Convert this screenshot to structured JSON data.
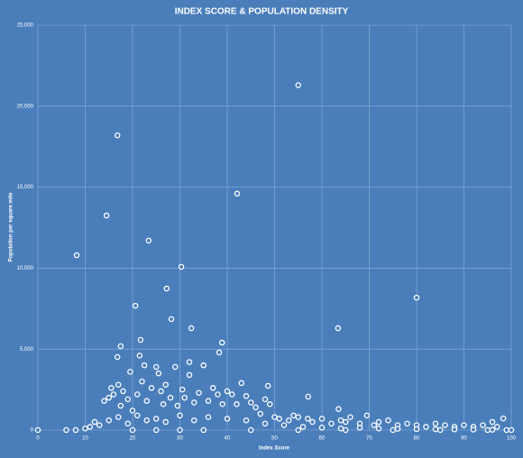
{
  "chart_data": {
    "type": "scatter",
    "title": "INDEX SCORE & POPULATION DENSITY",
    "x_label": "Index Score",
    "y_label": "Population per square mile",
    "color": "#ffffff",
    "background": "#4a7ebb",
    "grid": true,
    "xlim": [
      0,
      100
    ],
    "xticks": [
      0,
      10,
      20,
      30,
      40,
      50,
      60,
      70,
      80,
      90,
      100
    ],
    "ylim": [
      0,
      25000
    ],
    "yticks": [
      0,
      {
        "value": 5000,
        "label": "5,000"
      },
      {
        "value": 10000,
        "label": "10,000"
      },
      {
        "value": 15000,
        "label": "15,000"
      },
      {
        "value": 20000,
        "label": "20,000"
      },
      {
        "value": 25000,
        "label": "25,000"
      }
    ],
    "x": [
      55,
      16.8,
      42.1,
      14.5,
      23.4,
      8.2,
      30.3,
      80,
      27.2,
      20.6,
      28.2,
      32.4,
      63.4,
      21.7,
      38.9,
      17.5,
      38.3,
      16.8,
      57.1,
      48.6,
      98.3,
      14,
      15,
      15.5,
      16,
      17,
      17.5,
      18,
      19,
      19.5,
      20,
      21,
      21.5,
      22,
      22.5,
      23,
      24,
      25,
      25.5,
      26,
      26.5,
      27,
      28,
      29,
      29.5,
      30.5,
      31,
      32,
      32,
      33,
      34,
      35,
      36,
      37,
      38,
      39,
      40,
      41,
      42,
      43,
      44,
      45,
      46,
      47,
      48,
      49,
      50,
      51,
      53,
      54,
      55,
      57,
      58,
      60,
      62,
      63.5,
      64,
      65,
      66,
      68,
      69.5,
      71,
      72,
      74,
      76,
      78,
      80,
      82,
      84,
      86,
      88,
      90,
      92,
      94,
      96,
      97,
      0,
      6,
      8,
      10,
      11,
      12,
      13,
      15,
      17,
      19,
      21,
      23,
      25,
      27,
      30,
      33,
      36,
      40,
      44,
      48,
      52,
      56,
      60,
      64,
      68,
      72,
      76,
      80,
      84,
      88,
      92,
      96,
      99,
      100,
      45,
      55,
      65,
      75,
      85,
      95,
      20,
      30,
      35,
      25
    ],
    "values": [
      21300,
      18200,
      14600,
      13250,
      11700,
      10800,
      10080,
      8180,
      8740,
      7680,
      6850,
      6290,
      6290,
      5570,
      5400,
      5180,
      4790,
      4510,
      2060,
      2730,
      720,
      1800,
      2000,
      2600,
      2200,
      2800,
      1500,
      2400,
      1900,
      3600,
      1200,
      2200,
      4600,
      3000,
      4000,
      1800,
      2600,
      3900,
      3500,
      2400,
      1600,
      2800,
      2000,
      3900,
      1500,
      2500,
      2000,
      3400,
      4200,
      1700,
      2300,
      4000,
      1800,
      2600,
      2200,
      1600,
      2400,
      2200,
      1600,
      2900,
      2100,
      1700,
      1400,
      1000,
      1900,
      1600,
      800,
      700,
      600,
      900,
      800,
      700,
      500,
      700,
      400,
      1300,
      600,
      500,
      800,
      400,
      900,
      300,
      500,
      600,
      300,
      400,
      300,
      200,
      400,
      300,
      200,
      300,
      200,
      300,
      500,
      200,
      0,
      0,
      0,
      100,
      200,
      500,
      300,
      600,
      800,
      400,
      900,
      600,
      700,
      500,
      900,
      600,
      800,
      700,
      600,
      400,
      300,
      200,
      150,
      100,
      150,
      100,
      80,
      60,
      50,
      40,
      30,
      20,
      0,
      0,
      0,
      0,
      0,
      0,
      0,
      0,
      0,
      0,
      0,
      0
    ]
  }
}
